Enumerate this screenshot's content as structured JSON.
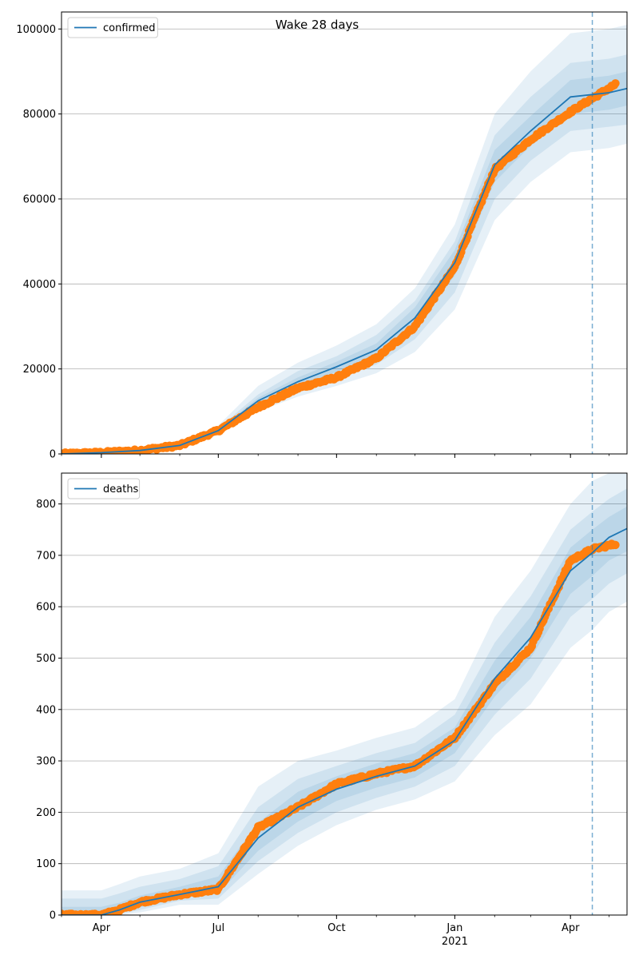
{
  "title": "Wake 28 days",
  "colors": {
    "model": "#1f77b4",
    "observed": "#ff7f0e",
    "band": "#1f77b4",
    "grid": "#b0b0b0",
    "cutoff": "#1f77b4"
  },
  "x_axis": {
    "start": "2020-03-01",
    "end": "2021-05-15",
    "ticks": [
      {
        "date": "2020-04-01",
        "label": "Apr",
        "year": ""
      },
      {
        "date": "2020-07-01",
        "label": "Jul",
        "year": ""
      },
      {
        "date": "2020-10-01",
        "label": "Oct",
        "year": ""
      },
      {
        "date": "2021-01-01",
        "label": "Jan",
        "year": "2021"
      },
      {
        "date": "2021-04-01",
        "label": "Apr",
        "year": ""
      }
    ],
    "cutoff_date": "2021-04-18",
    "observed_end": "2021-05-06",
    "grid": false
  },
  "chart_data": [
    {
      "type": "line",
      "panel": "top",
      "series_name": "confirmed",
      "legend": "top-left",
      "y_grid": true,
      "ylim": [
        0,
        104000
      ],
      "yticks": [
        0,
        20000,
        40000,
        60000,
        80000,
        100000
      ],
      "yticklabels": [
        "0",
        "20000",
        "40000",
        "60000",
        "80000",
        "100000"
      ],
      "model": {
        "x": [
          "2020-03-01",
          "2020-04-01",
          "2020-05-01",
          "2020-06-01",
          "2020-07-01",
          "2020-08-01",
          "2020-09-01",
          "2020-10-01",
          "2020-11-01",
          "2020-12-01",
          "2021-01-01",
          "2021-02-01",
          "2021-03-01",
          "2021-04-01",
          "2021-05-01",
          "2021-05-15"
        ],
        "y": [
          0,
          300,
          800,
          2000,
          5500,
          12500,
          17000,
          20500,
          24500,
          32000,
          45000,
          68000,
          76000,
          84000,
          85000,
          86000
        ],
        "bands": [
          {
            "lower": [
              0,
              150,
              500,
              1400,
              4500,
              10000,
              13500,
              16000,
              19000,
              24000,
              34000,
              55000,
              64000,
              71000,
              72000,
              73000
            ],
            "upper": [
              0,
              450,
              1100,
              2600,
              6700,
              16000,
              21500,
              25500,
              30500,
              39000,
              54000,
              80000,
              90000,
              99000,
              100000,
              101000
            ]
          },
          {
            "lower": [
              0,
              200,
              600,
              1700,
              5000,
              11000,
              15000,
              18000,
              21000,
              27000,
              38000,
              60000,
              69000,
              76000,
              77000,
              77500
            ],
            "upper": [
              0,
              400,
              1000,
              2300,
              6100,
              14000,
              19500,
              23000,
              28000,
              36000,
              50000,
              75000,
              84000,
              92000,
              93000,
              94000
            ]
          },
          {
            "lower": [
              0,
              250,
              700,
              1850,
              5200,
              11800,
              16000,
              19300,
              23000,
              29500,
              42000,
              64000,
              72500,
              80000,
              81000,
              82000
            ],
            "upper": [
              0,
              350,
              900,
              2150,
              5800,
              13200,
              18000,
              21700,
              26000,
              34500,
              48000,
              71500,
              79500,
              88000,
              89000,
              90000
            ]
          }
        ]
      },
      "observed": {
        "x": [
          "2020-03-01",
          "2020-04-01",
          "2020-05-01",
          "2020-06-01",
          "2020-07-01",
          "2020-08-01",
          "2020-09-01",
          "2020-10-01",
          "2020-11-01",
          "2020-12-01",
          "2021-01-01",
          "2021-02-01",
          "2021-03-01",
          "2021-04-01",
          "2021-05-06"
        ],
        "y": [
          0,
          300,
          800,
          2000,
          5500,
          11000,
          15500,
          18000,
          22500,
          30000,
          44000,
          67000,
          74000,
          80500,
          87000
        ]
      }
    },
    {
      "type": "line",
      "panel": "bottom",
      "series_name": "deaths",
      "legend": "top-left",
      "y_grid": true,
      "ylim": [
        0,
        860
      ],
      "yticks": [
        0,
        100,
        200,
        300,
        400,
        500,
        600,
        700,
        800
      ],
      "yticklabels": [
        "0",
        "100",
        "200",
        "300",
        "400",
        "500",
        "600",
        "700",
        "800"
      ],
      "model": {
        "x": [
          "2020-03-01",
          "2020-04-01",
          "2020-04-15",
          "2020-05-01",
          "2020-06-01",
          "2020-07-01",
          "2020-08-01",
          "2020-09-01",
          "2020-10-01",
          "2020-11-01",
          "2020-12-01",
          "2021-01-01",
          "2021-02-01",
          "2021-03-01",
          "2021-04-01",
          "2021-04-18",
          "2021-05-01",
          "2021-05-15"
        ],
        "y": [
          0,
          0,
          10,
          25,
          40,
          55,
          150,
          210,
          245,
          270,
          290,
          340,
          460,
          540,
          670,
          705,
          735,
          752
        ],
        "bands": [
          {
            "lower": [
              0,
              0,
              0,
              5,
              20,
              20,
              80,
              135,
              175,
              205,
              225,
              260,
              350,
              410,
              520,
              555,
              590,
              610
            ],
            "upper": [
              48,
              48,
              60,
              75,
              90,
              120,
              250,
              300,
              320,
              345,
              365,
              420,
              580,
              670,
              800,
              845,
              860,
              880
            ]
          },
          {
            "lower": [
              0,
              0,
              2,
              10,
              28,
              32,
              105,
              160,
              200,
              228,
              250,
              290,
              390,
              460,
              580,
              615,
              645,
              665
            ],
            "upper": [
              32,
              32,
              42,
              55,
              70,
              95,
              210,
              265,
              290,
              315,
              335,
              390,
              530,
              620,
              750,
              785,
              810,
              830
            ]
          },
          {
            "lower": [
              0,
              0,
              5,
              15,
              33,
              42,
              125,
              182,
              222,
              248,
              268,
              315,
              425,
              500,
              625,
              660,
              690,
              708
            ],
            "upper": [
              16,
              16,
              24,
              38,
              55,
              75,
              180,
              240,
              270,
              295,
              315,
              365,
              495,
              580,
              715,
              750,
              775,
              795
            ]
          }
        ]
      },
      "observed": {
        "x": [
          "2020-03-01",
          "2020-04-01",
          "2020-04-15",
          "2020-05-01",
          "2020-06-01",
          "2020-07-01",
          "2020-08-01",
          "2020-09-01",
          "2020-10-01",
          "2020-11-01",
          "2020-12-01",
          "2021-01-01",
          "2021-02-01",
          "2021-03-01",
          "2021-04-01",
          "2021-04-18",
          "2021-05-06"
        ],
        "y": [
          0,
          0,
          10,
          25,
          40,
          50,
          170,
          210,
          255,
          275,
          290,
          345,
          450,
          520,
          690,
          712,
          722
        ]
      }
    }
  ]
}
